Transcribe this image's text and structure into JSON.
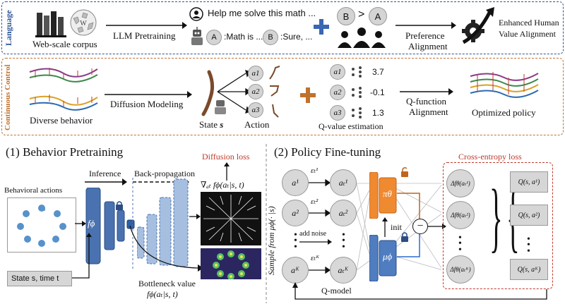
{
  "top": {
    "side_label": "Language",
    "corpus_label": "Web-scale corpus",
    "llm_arrow_label": "LLM Pretraining",
    "prompt_text": "Help me solve this math ...",
    "response_a_letter": "A",
    "response_a_text": ":Math is ...",
    "response_b_letter": "B",
    "response_b_text": ":Sure, ...",
    "pref_b": "B",
    "pref_gt": ">",
    "pref_a": "A",
    "pref_arrow_label_1": "Preference",
    "pref_arrow_label_2": "Alignment",
    "result_label_1": "Enhanced Human",
    "result_label_2": "Value Alignment"
  },
  "mid": {
    "side_label": "Continuous Control",
    "diverse_label": "Diverse behavior",
    "diffusion_arrow_label": "Diffusion Modeling",
    "state_label": "State",
    "state_symbol": "s",
    "action_label": "Action",
    "actions": [
      "a1",
      "a2",
      "a3"
    ],
    "action_subs": [
      "1",
      "2",
      "3"
    ],
    "q_values": [
      "3.7",
      "-0.1",
      "1.3"
    ],
    "qvalue_label": "Q-value estimation",
    "qf_arrow_label_1": "Q-function",
    "qf_arrow_label_2": "Alignment",
    "optimized_label": "Optimized policy"
  },
  "left": {
    "title": "(1) Behavior Pretraining",
    "diffusion_loss": "Diffusion loss",
    "inference": "Inference",
    "backprop": "Back-propagation",
    "behavioral_actions": "Behavioral actions",
    "f_phi": "fϕ",
    "grad_label": "∇ₐₜ fϕ(aₜ|s, t)",
    "state_time": "State s, time t",
    "bottleneck_1": "Bottleneck value",
    "bottleneck_2": "fϕ(aₜ|s, t)"
  },
  "right": {
    "title": "(2) Policy Fine-tuning",
    "ce_loss": "Cross-entropy loss",
    "sample_label": "Sample from μϕ(· |s)",
    "add_noise": "add noise",
    "q_model": "Q-model",
    "init": "init",
    "pi_theta": "πθ",
    "mu_phi": "μϕ",
    "minus": "−",
    "a_nodes": [
      "a¹",
      "a²",
      "aᴷ"
    ],
    "at_nodes": [
      "aₜ¹",
      "aₜ²",
      "aₜᴷ"
    ],
    "eps": [
      "εₜ¹",
      "εₜ²",
      "εₜᴷ"
    ],
    "df_nodes": [
      "Δfθ(aₜ¹)",
      "Δfθ(aₜ²)",
      "Δfθ(aₜᴷ)"
    ],
    "q_boxes": [
      "Q(s, a¹)",
      "Q(s, a²)",
      "Q(s, aᴷ)"
    ]
  },
  "colors": {
    "blue_panel": "#2e5597",
    "orange_panel": "#c0722d",
    "red": "#c0392b",
    "net_blue": "#4a72b0",
    "policy_orange": "#f08a30",
    "policy_blue": "#4f7dc0"
  }
}
